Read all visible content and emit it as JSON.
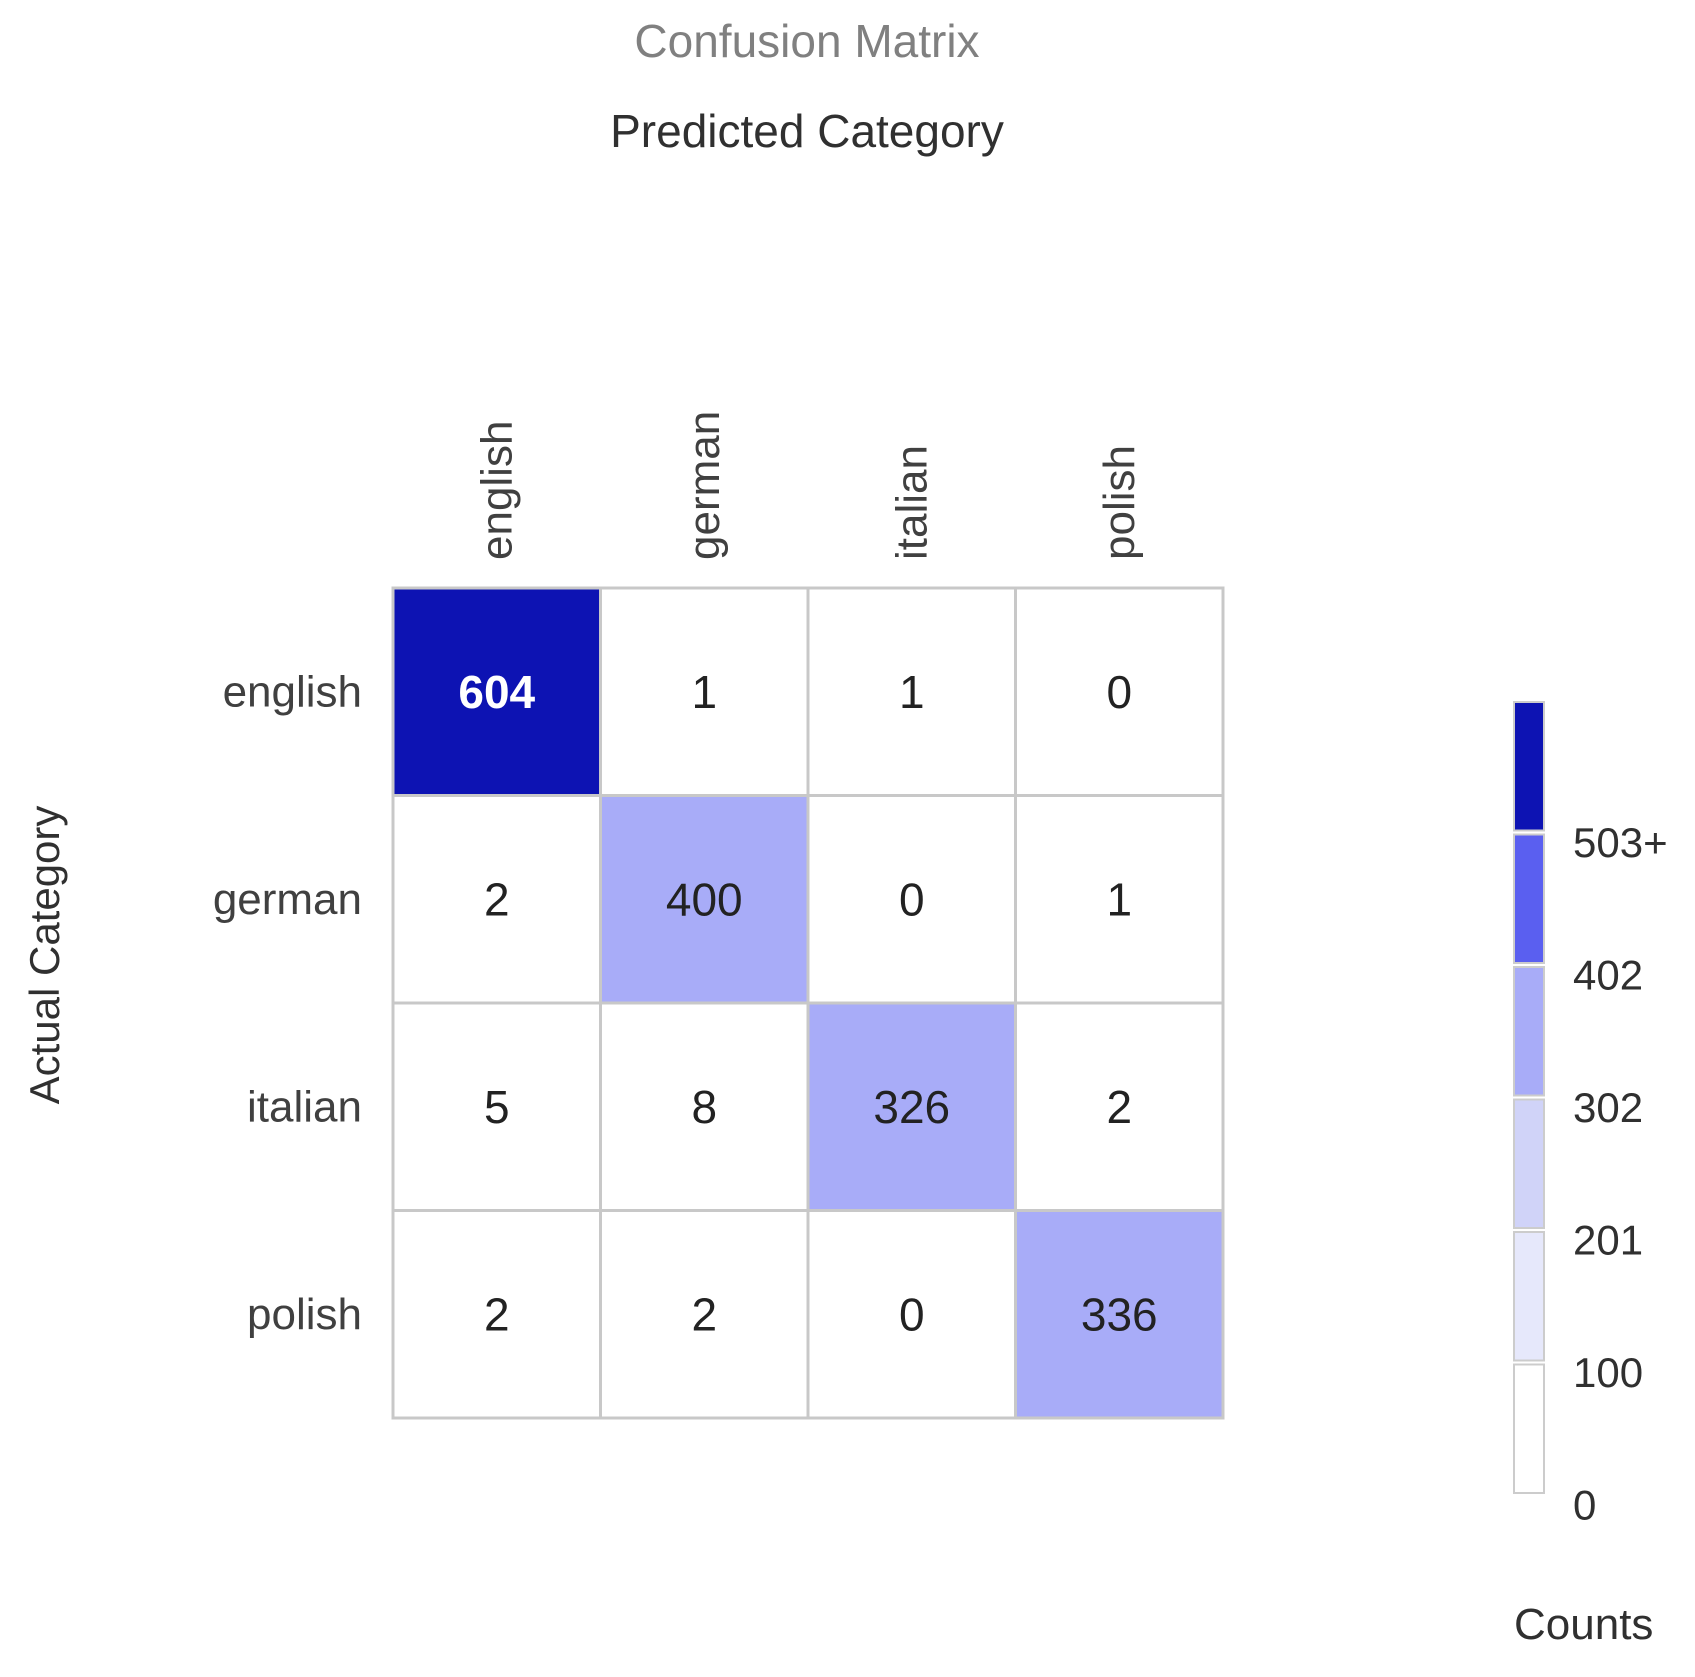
{
  "chart_data": {
    "type": "heatmap",
    "title": "Confusion Matrix",
    "xlabel": "Predicted Category",
    "ylabel": "Actual Category",
    "x_categories": [
      "english",
      "german",
      "italian",
      "polish"
    ],
    "y_categories": [
      "english",
      "german",
      "italian",
      "polish"
    ],
    "values": [
      [
        604,
        1,
        1,
        0
      ],
      [
        2,
        400,
        0,
        1
      ],
      [
        5,
        8,
        326,
        2
      ],
      [
        2,
        2,
        0,
        336
      ]
    ],
    "colorbar": {
      "title": "Counts",
      "tick_labels": [
        "0",
        "100",
        "201",
        "302",
        "402",
        "503+"
      ],
      "thresholds": [
        0,
        100,
        201,
        302,
        402,
        503
      ],
      "colors": [
        "#ffffff",
        "#e6e8fb",
        "#d0d3f8",
        "#a8acf8",
        "#5a5ff0",
        "#0d13b3"
      ]
    },
    "grid": true
  }
}
